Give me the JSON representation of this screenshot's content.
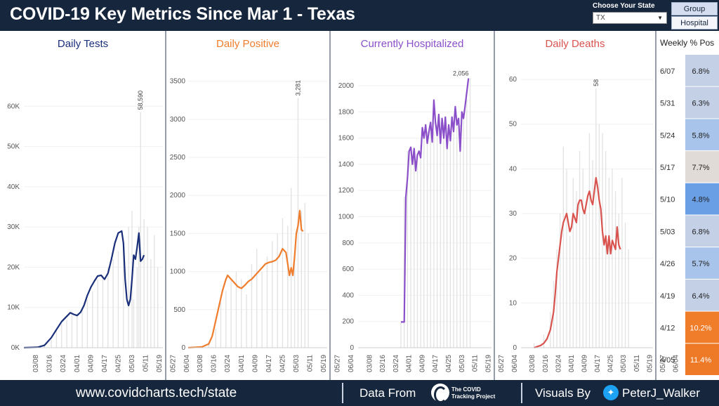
{
  "header": {
    "title": "COVID-19 Key Metrics Since Mar 1  -  Texas",
    "state_picker_label": "Choose Your State",
    "state_value": "TX",
    "toggle_group_label": "Group",
    "toggle_hospital_label": "Hospital"
  },
  "footer": {
    "url": "www.covidcharts.tech/state",
    "data_from": "Data From",
    "ctp_line1": "The COVID",
    "ctp_line2": "Tracking Project",
    "visuals_by": "Visuals By",
    "handle": "PeterJ_Walker"
  },
  "colors": {
    "tests": "#1a2f7a",
    "positive": "#ef7d2d",
    "hospitalized": "#8a4fc9",
    "deaths": "#d9534f",
    "bars": "#e2e2e2"
  },
  "chart_data": [
    {
      "type": "line",
      "title": "Daily Tests",
      "x_ticks": [
        "03/08",
        "03/16",
        "03/24",
        "04/01",
        "04/09",
        "04/17",
        "04/25",
        "05/03",
        "05/11",
        "05/19",
        "05/27",
        "06/04"
      ],
      "y_ticks": [
        "0K",
        "10K",
        "20K",
        "30K",
        "40K",
        "50K",
        "60K"
      ],
      "ylim": [
        0,
        70000
      ],
      "bars_label": "daily values (grey bars)",
      "line_label": "7-day average",
      "annotation": {
        "x": "05/25",
        "value": 58590,
        "label": "58,590"
      },
      "bars": [
        [
          0,
          0
        ],
        [
          7,
          300
        ],
        [
          12,
          800
        ],
        [
          16,
          2000
        ],
        [
          19,
          4500
        ],
        [
          22,
          6000
        ],
        [
          25,
          7000
        ],
        [
          28,
          9000
        ],
        [
          31,
          8500
        ],
        [
          34,
          10000
        ],
        [
          37,
          12000
        ],
        [
          40,
          14000
        ],
        [
          43,
          17000
        ],
        [
          46,
          18000
        ],
        [
          49,
          20000
        ],
        [
          52,
          22000
        ],
        [
          55,
          24000
        ],
        [
          58,
          27000
        ],
        [
          61,
          30000
        ],
        [
          63,
          34000
        ],
        [
          64,
          12000
        ],
        [
          66,
          20000
        ],
        [
          67,
          30000
        ],
        [
          68,
          58590
        ],
        [
          70,
          32000
        ],
        [
          72,
          30000
        ],
        [
          74,
          22000
        ],
        [
          76,
          28000
        ],
        [
          78,
          20000
        ]
      ],
      "line": [
        [
          0,
          0
        ],
        [
          8,
          100
        ],
        [
          12,
          600
        ],
        [
          16,
          2500
        ],
        [
          19,
          4500
        ],
        [
          22,
          6500
        ],
        [
          25,
          7800
        ],
        [
          27,
          8700
        ],
        [
          29,
          8300
        ],
        [
          31,
          8000
        ],
        [
          33,
          8800
        ],
        [
          35,
          10500
        ],
        [
          37,
          13000
        ],
        [
          39,
          15000
        ],
        [
          41,
          16500
        ],
        [
          43,
          17800
        ],
        [
          45,
          18000
        ],
        [
          47,
          17000
        ],
        [
          49,
          18500
        ],
        [
          51,
          22000
        ],
        [
          53,
          26000
        ],
        [
          55,
          28500
        ],
        [
          57,
          29000
        ],
        [
          58,
          26000
        ],
        [
          59,
          17000
        ],
        [
          60,
          12000
        ],
        [
          61,
          10500
        ],
        [
          62,
          12000
        ],
        [
          63,
          17000
        ],
        [
          64,
          23000
        ],
        [
          65,
          22000
        ],
        [
          66,
          25000
        ],
        [
          67,
          28500
        ],
        [
          68,
          21500
        ],
        [
          69,
          22000
        ],
        [
          70,
          23000
        ]
      ]
    },
    {
      "type": "line",
      "title": "Daily Positive",
      "x_ticks": [
        "03/08",
        "03/16",
        "03/24",
        "04/01",
        "04/09",
        "04/17",
        "04/25",
        "05/03",
        "05/11",
        "05/19",
        "05/27",
        "06/04"
      ],
      "y_ticks": [
        "0",
        "500",
        "1000",
        "1500",
        "2000",
        "2500",
        "3000",
        "3500"
      ],
      "ylim": [
        0,
        3700
      ],
      "bars_label": "daily values (grey bars)",
      "line_label": "7-day average",
      "annotation": {
        "x": "05/27",
        "value": 3281,
        "label": "3,281"
      },
      "bars": [
        [
          0,
          0
        ],
        [
          8,
          20
        ],
        [
          12,
          80
        ],
        [
          16,
          250
        ],
        [
          19,
          600
        ],
        [
          22,
          750
        ],
        [
          25,
          900
        ],
        [
          28,
          1000
        ],
        [
          31,
          900
        ],
        [
          34,
          700
        ],
        [
          37,
          1100
        ],
        [
          40,
          1300
        ],
        [
          43,
          1000
        ],
        [
          46,
          1200
        ],
        [
          49,
          1400
        ],
        [
          52,
          1500
        ],
        [
          55,
          1700
        ],
        [
          58,
          1600
        ],
        [
          60,
          2100
        ],
        [
          62,
          1200
        ],
        [
          64,
          3281
        ],
        [
          66,
          1800
        ],
        [
          68,
          1900
        ],
        [
          70,
          1500
        ]
      ],
      "line": [
        [
          0,
          0
        ],
        [
          8,
          10
        ],
        [
          12,
          50
        ],
        [
          14,
          150
        ],
        [
          16,
          350
        ],
        [
          18,
          550
        ],
        [
          20,
          750
        ],
        [
          22,
          900
        ],
        [
          23,
          950
        ],
        [
          25,
          900
        ],
        [
          27,
          850
        ],
        [
          29,
          800
        ],
        [
          31,
          780
        ],
        [
          33,
          820
        ],
        [
          35,
          870
        ],
        [
          37,
          900
        ],
        [
          39,
          950
        ],
        [
          41,
          1000
        ],
        [
          43,
          1050
        ],
        [
          45,
          1100
        ],
        [
          47,
          1120
        ],
        [
          49,
          1130
        ],
        [
          51,
          1150
        ],
        [
          53,
          1200
        ],
        [
          55,
          1300
        ],
        [
          57,
          1250
        ],
        [
          58,
          1100
        ],
        [
          59,
          950
        ],
        [
          60,
          1050
        ],
        [
          61,
          950
        ],
        [
          62,
          1200
        ],
        [
          63,
          1500
        ],
        [
          64,
          1600
        ],
        [
          65,
          1800
        ],
        [
          66,
          1550
        ],
        [
          67,
          1530
        ]
      ]
    },
    {
      "type": "line",
      "title": "Currently Hospitalized",
      "x_ticks": [
        "03/08",
        "03/16",
        "03/24",
        "04/01",
        "04/09",
        "04/17",
        "04/25",
        "05/03",
        "05/11",
        "05/19",
        "05/27",
        "06/04"
      ],
      "y_ticks": [
        "0",
        "200",
        "400",
        "600",
        "800",
        "1000",
        "1200",
        "1400",
        "1600",
        "1800",
        "2000"
      ],
      "ylim": [
        0,
        2150
      ],
      "bars_label": "daily values (grey bars)",
      "line_label": "hospitalized",
      "annotation": {
        "x": "06/06",
        "value": 2056,
        "label": "2,056"
      },
      "bars": [
        [
          26,
          196
        ],
        [
          28,
          1150
        ],
        [
          30,
          1500
        ],
        [
          32,
          1450
        ],
        [
          34,
          1500
        ],
        [
          36,
          1450
        ],
        [
          38,
          1550
        ],
        [
          40,
          1600
        ],
        [
          42,
          1650
        ],
        [
          44,
          1700
        ],
        [
          46,
          1650
        ],
        [
          48,
          1700
        ],
        [
          50,
          1650
        ],
        [
          52,
          1700
        ],
        [
          54,
          1600
        ],
        [
          56,
          1650
        ],
        [
          58,
          1700
        ],
        [
          60,
          1750
        ],
        [
          62,
          1700
        ],
        [
          64,
          1800
        ],
        [
          66,
          1900
        ],
        [
          68,
          2056
        ]
      ],
      "line": [
        [
          26,
          196
        ],
        [
          28,
          196
        ],
        [
          29,
          1150
        ],
        [
          30,
          1300
        ],
        [
          31,
          1500
        ],
        [
          32,
          1530
        ],
        [
          33,
          1400
        ],
        [
          34,
          1520
        ],
        [
          35,
          1350
        ],
        [
          36,
          1470
        ],
        [
          37,
          1500
        ],
        [
          38,
          1450
        ],
        [
          39,
          1680
        ],
        [
          40,
          1600
        ],
        [
          41,
          1700
        ],
        [
          42,
          1560
        ],
        [
          43,
          1650
        ],
        [
          44,
          1720
        ],
        [
          45,
          1570
        ],
        [
          46,
          1890
        ],
        [
          47,
          1720
        ],
        [
          48,
          1620
        ],
        [
          49,
          1780
        ],
        [
          50,
          1560
        ],
        [
          51,
          1750
        ],
        [
          52,
          1600
        ],
        [
          53,
          1760
        ],
        [
          54,
          1520
        ],
        [
          55,
          1700
        ],
        [
          56,
          1580
        ],
        [
          57,
          1760
        ],
        [
          58,
          1650
        ],
        [
          59,
          1840
        ],
        [
          60,
          1700
        ],
        [
          61,
          1750
        ],
        [
          62,
          1500
        ],
        [
          63,
          1800
        ],
        [
          64,
          1750
        ],
        [
          65,
          1850
        ],
        [
          66,
          1950
        ],
        [
          67,
          2056
        ]
      ]
    },
    {
      "type": "line",
      "title": "Daily Deaths",
      "x_ticks": [
        "03/08",
        "03/16",
        "03/24",
        "04/01",
        "04/09",
        "04/17",
        "04/25",
        "05/03",
        "05/11",
        "05/19",
        "05/27",
        "06/04"
      ],
      "y_ticks": [
        "0",
        "10",
        "20",
        "30",
        "40",
        "50",
        "60"
      ],
      "ylim": [
        0,
        63
      ],
      "bars_label": "daily values (grey bars)",
      "line_label": "7-day average",
      "annotation": {
        "x": "05/16",
        "value": 58,
        "label": "58"
      },
      "bars": [
        [
          8,
          1
        ],
        [
          14,
          3
        ],
        [
          18,
          8
        ],
        [
          20,
          15
        ],
        [
          22,
          22
        ],
        [
          24,
          30
        ],
        [
          26,
          45
        ],
        [
          28,
          40
        ],
        [
          30,
          25
        ],
        [
          32,
          38
        ],
        [
          34,
          35
        ],
        [
          36,
          44
        ],
        [
          38,
          40
        ],
        [
          40,
          30
        ],
        [
          42,
          48
        ],
        [
          44,
          42
        ],
        [
          46,
          58
        ],
        [
          48,
          50
        ],
        [
          50,
          48
        ],
        [
          52,
          44
        ],
        [
          54,
          38
        ],
        [
          56,
          40
        ],
        [
          58,
          35
        ],
        [
          60,
          30
        ],
        [
          62,
          38
        ],
        [
          64,
          28
        ],
        [
          66,
          22
        ]
      ],
      "line": [
        [
          8,
          0
        ],
        [
          12,
          0.5
        ],
        [
          14,
          1
        ],
        [
          16,
          2
        ],
        [
          18,
          4
        ],
        [
          20,
          8
        ],
        [
          21,
          12
        ],
        [
          22,
          17
        ],
        [
          23,
          20
        ],
        [
          24,
          23
        ],
        [
          25,
          26
        ],
        [
          26,
          28
        ],
        [
          27,
          29
        ],
        [
          28,
          30
        ],
        [
          29,
          28
        ],
        [
          30,
          26
        ],
        [
          31,
          27
        ],
        [
          32,
          30
        ],
        [
          33,
          29
        ],
        [
          34,
          28
        ],
        [
          35,
          32
        ],
        [
          36,
          33
        ],
        [
          37,
          33
        ],
        [
          38,
          31
        ],
        [
          39,
          30
        ],
        [
          40,
          32
        ],
        [
          41,
          34
        ],
        [
          42,
          35
        ],
        [
          43,
          33
        ],
        [
          44,
          32
        ],
        [
          45,
          35
        ],
        [
          46,
          38
        ],
        [
          47,
          36
        ],
        [
          48,
          33
        ],
        [
          49,
          31
        ],
        [
          50,
          26
        ],
        [
          51,
          23
        ],
        [
          52,
          25
        ],
        [
          53,
          21
        ],
        [
          54,
          25
        ],
        [
          55,
          21
        ],
        [
          56,
          24
        ],
        [
          57,
          23
        ],
        [
          58,
          22
        ],
        [
          59,
          27
        ],
        [
          60,
          23
        ],
        [
          61,
          22
        ]
      ]
    },
    {
      "type": "table",
      "title": "Weekly % Pos",
      "rows": [
        {
          "week": "6/07",
          "value": "6.8%",
          "color": "#c3d0e6"
        },
        {
          "week": "5/31",
          "value": "6.3%",
          "color": "#c3d0e6"
        },
        {
          "week": "5/24",
          "value": "5.8%",
          "color": "#a8c4ea"
        },
        {
          "week": "5/17",
          "value": "7.7%",
          "color": "#e0dbd7"
        },
        {
          "week": "5/10",
          "value": "4.8%",
          "color": "#6a9fe6"
        },
        {
          "week": "5/03",
          "value": "6.8%",
          "color": "#c3d0e6"
        },
        {
          "week": "4/26",
          "value": "5.7%",
          "color": "#a8c4ea"
        },
        {
          "week": "4/19",
          "value": "6.4%",
          "color": "#c3d0e6"
        },
        {
          "week": "4/12",
          "value": "10.2%",
          "color": "#f07d2a"
        },
        {
          "week": "4/05",
          "value": "11.4%",
          "color": "#ee7a27"
        }
      ]
    }
  ]
}
